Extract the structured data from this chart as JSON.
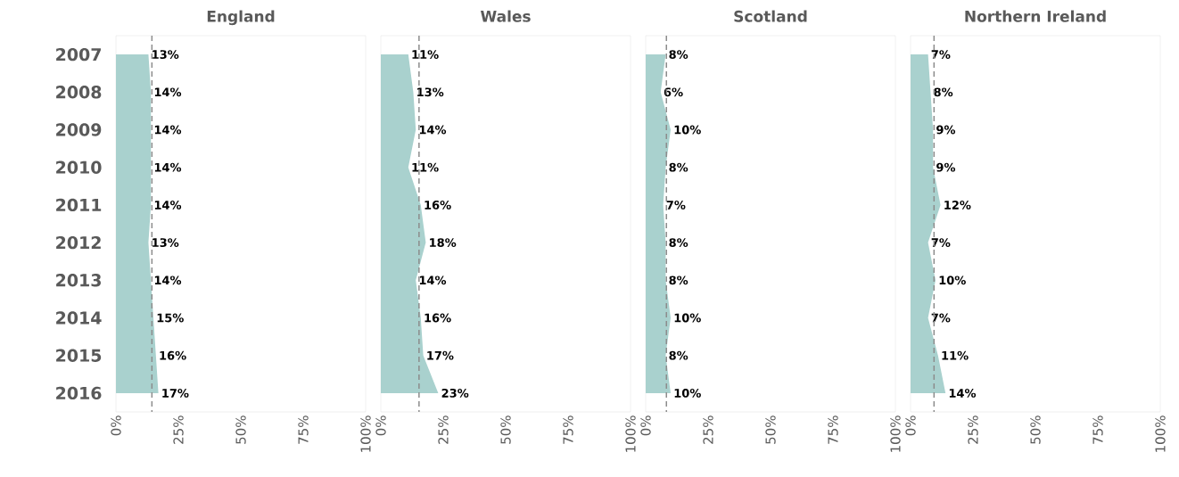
{
  "chart_data": [
    {
      "type": "area",
      "orientation": "horizontal",
      "title": "England",
      "categories": [
        "2007",
        "2008",
        "2009",
        "2010",
        "2011",
        "2012",
        "2013",
        "2014",
        "2015",
        "2016"
      ],
      "values": [
        13,
        14,
        14,
        14,
        14,
        13,
        14,
        15,
        16,
        17
      ],
      "value_labels": [
        "13%",
        "14%",
        "14%",
        "14%",
        "14%",
        "13%",
        "14%",
        "15%",
        "16%",
        "17%"
      ],
      "color": "#a9d1ce",
      "xlim": [
        0,
        100
      ],
      "xticks": [
        {
          "value": 0,
          "label": "0%"
        },
        {
          "value": 25,
          "label": "25%"
        },
        {
          "value": 50,
          "label": "50%"
        },
        {
          "value": 75,
          "label": "75%"
        },
        {
          "value": 100,
          "label": "100%"
        }
      ],
      "ref_lines": [
        {
          "axis": "x",
          "value": 14.4,
          "color": "#8c8c8c",
          "line_style": "dashed"
        }
      ]
    },
    {
      "type": "area",
      "orientation": "horizontal",
      "title": "Wales",
      "categories": [
        "2007",
        "2008",
        "2009",
        "2010",
        "2011",
        "2012",
        "2013",
        "2014",
        "2015",
        "2016"
      ],
      "values": [
        11,
        13,
        14,
        11,
        16,
        18,
        14,
        16,
        17,
        23
      ],
      "value_labels": [
        "11%",
        "13%",
        "14%",
        "11%",
        "16%",
        "18%",
        "14%",
        "16%",
        "17%",
        "23%"
      ],
      "color": "#a9d1ce",
      "xlim": [
        0,
        100
      ],
      "xticks": [
        {
          "value": 0,
          "label": "0%"
        },
        {
          "value": 25,
          "label": "25%"
        },
        {
          "value": 50,
          "label": "50%"
        },
        {
          "value": 75,
          "label": "75%"
        },
        {
          "value": 100,
          "label": "100%"
        }
      ],
      "ref_lines": [
        {
          "axis": "x",
          "value": 15.3,
          "color": "#8c8c8c",
          "line_style": "dashed"
        }
      ],
      "tick_labels": "x"
    },
    {
      "type": "area",
      "orientation": "horizontal",
      "title": "Scotland",
      "categories": [
        "2007",
        "2008",
        "2009",
        "2010",
        "2011",
        "2012",
        "2013",
        "2014",
        "2015",
        "2016"
      ],
      "values": [
        8,
        6,
        10,
        8,
        7,
        8,
        8,
        10,
        8,
        10
      ],
      "value_labels": [
        "8%",
        "6%",
        "10%",
        "8%",
        "7%",
        "8%",
        "8%",
        "10%",
        "8%",
        "10%"
      ],
      "color": "#a9d1ce",
      "xlim": [
        0,
        100
      ],
      "xticks": [
        {
          "value": 0,
          "label": "0%"
        },
        {
          "value": 25,
          "label": "25%"
        },
        {
          "value": 50,
          "label": "50%"
        },
        {
          "value": 75,
          "label": "75%"
        },
        {
          "value": 100,
          "label": "100%"
        }
      ],
      "ref_lines": [
        {
          "axis": "x",
          "value": 8.3,
          "color": "#8c8c8c",
          "line_style": "dashed"
        }
      ],
      "tick_labels": "x"
    },
    {
      "type": "area",
      "orientation": "horizontal",
      "title": "Northern Ireland",
      "categories": [
        "2007",
        "2008",
        "2009",
        "2010",
        "2011",
        "2012",
        "2013",
        "2014",
        "2015",
        "2016"
      ],
      "values": [
        7,
        8,
        9,
        9,
        12,
        7,
        10,
        7,
        11,
        14
      ],
      "value_labels": [
        "7%",
        "8%",
        "9%",
        "9%",
        "12%",
        "7%",
        "10%",
        "7%",
        "11%",
        "14%"
      ],
      "color": "#a9d1ce",
      "xlim": [
        0,
        100
      ],
      "xticks": [
        {
          "value": 0,
          "label": "0%"
        },
        {
          "value": 25,
          "label": "25%"
        },
        {
          "value": 50,
          "label": "50%"
        },
        {
          "value": 75,
          "label": "75%"
        },
        {
          "value": 100,
          "label": "100%"
        }
      ],
      "ref_lines": [
        {
          "axis": "x",
          "value": 9.4,
          "color": "#8c8c8c",
          "line_style": "dashed"
        }
      ],
      "tick_labels": "x"
    }
  ]
}
